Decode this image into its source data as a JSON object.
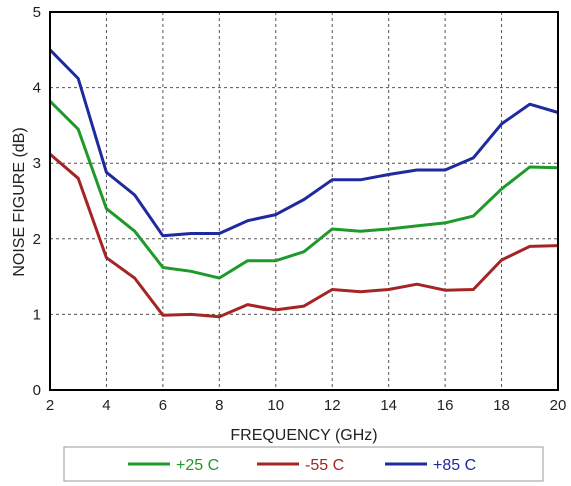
{
  "chart_data": {
    "type": "line",
    "xlabel": "FREQUENCY (GHz)",
    "ylabel": "NOISE FIGURE (dB)",
    "xlim": [
      2,
      20
    ],
    "ylim": [
      0,
      5
    ],
    "x_ticks": [
      "2",
      "4",
      "6",
      "8",
      "10",
      "12",
      "14",
      "16",
      "18",
      "20"
    ],
    "y_ticks": [
      "0",
      "1",
      "2",
      "3",
      "4",
      "5"
    ],
    "grid": true,
    "legend_position": "bottom",
    "x": [
      2,
      3,
      4,
      5,
      6,
      7,
      8,
      9,
      10,
      11,
      12,
      13,
      14,
      15,
      16,
      17,
      18,
      19,
      20
    ],
    "series": [
      {
        "name": "+25 C",
        "color": "#1f9a2a",
        "values": [
          3.82,
          3.45,
          2.4,
          2.1,
          1.62,
          1.57,
          1.48,
          1.71,
          1.71,
          1.83,
          2.13,
          2.1,
          2.13,
          2.17,
          2.21,
          2.3,
          2.66,
          2.95,
          2.94
        ]
      },
      {
        "name": "-55 C",
        "color": "#a52424",
        "values": [
          3.12,
          2.8,
          1.75,
          1.48,
          0.99,
          1.0,
          0.97,
          1.13,
          1.06,
          1.11,
          1.33,
          1.3,
          1.33,
          1.4,
          1.32,
          1.33,
          1.72,
          1.9,
          1.91
        ]
      },
      {
        "name": "+85 C",
        "color": "#1e2a9e",
        "values": [
          4.5,
          4.12,
          2.88,
          2.58,
          2.04,
          2.07,
          2.07,
          2.24,
          2.32,
          2.52,
          2.78,
          2.78,
          2.85,
          2.91,
          2.91,
          3.07,
          3.52,
          3.78,
          3.67
        ]
      }
    ]
  }
}
